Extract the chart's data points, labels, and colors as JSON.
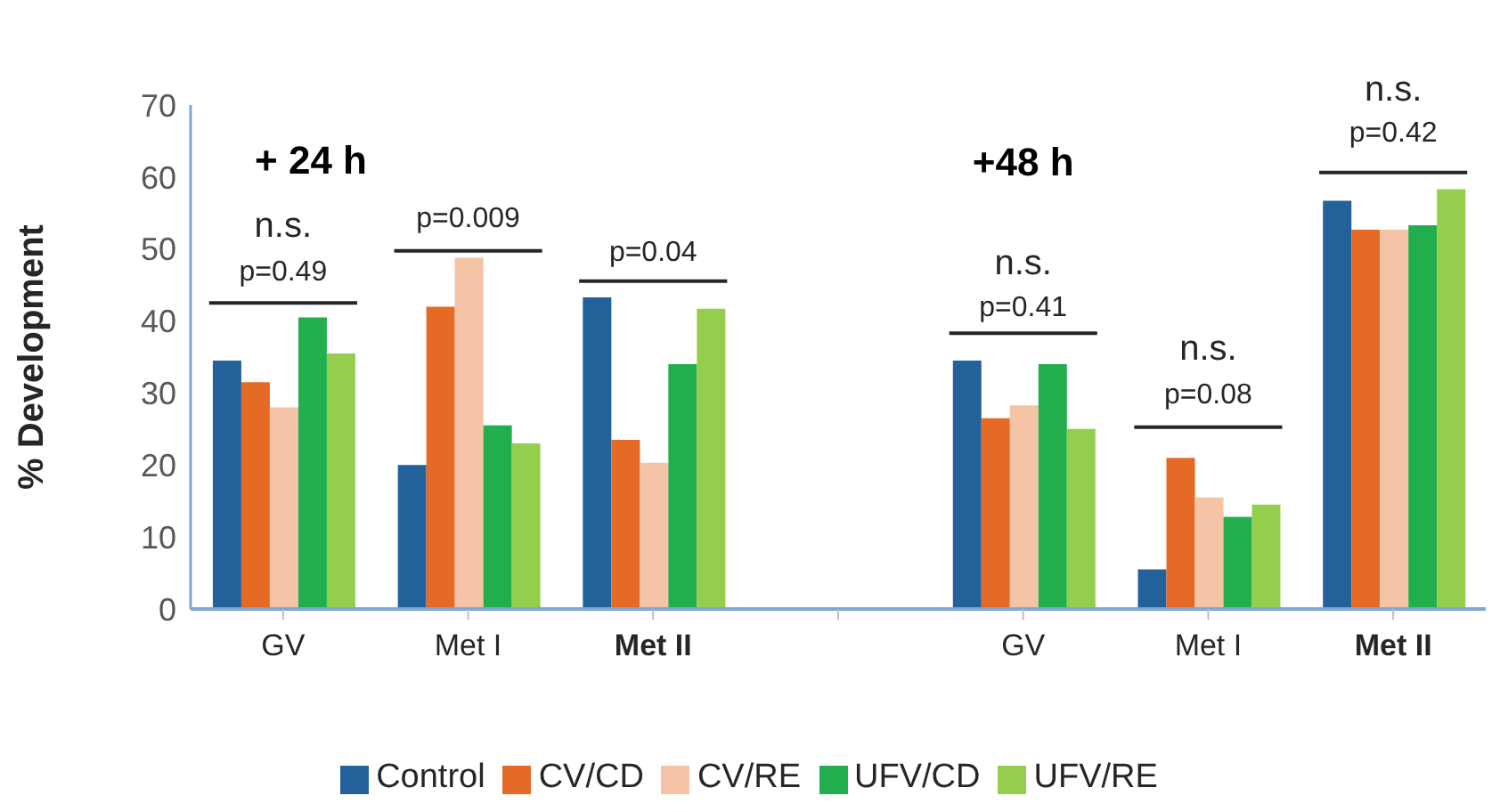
{
  "chart_data": {
    "type": "bar",
    "ylabel": "% Development",
    "categories": [
      "GV",
      "Met I",
      "Met II",
      null,
      "GV",
      "Met I",
      "Met II"
    ],
    "series": [
      {
        "name": "Control",
        "color": "#23619b",
        "values": [
          34.5,
          20,
          43.3,
          null,
          34.5,
          5.5,
          56.7
        ]
      },
      {
        "name": "CV/CD",
        "color": "#e46a25",
        "values": [
          31.5,
          42,
          23.5,
          null,
          26.5,
          21,
          52.7
        ]
      },
      {
        "name": "CV/RE",
        "color": "#f5c4a7",
        "values": [
          28,
          48.8,
          20.3,
          null,
          28.3,
          15.5,
          52.7
        ]
      },
      {
        "name": "UFV/CD",
        "color": "#22ae4d",
        "values": [
          40.5,
          25.5,
          34,
          null,
          34,
          12.8,
          53.3
        ]
      },
      {
        "name": "UFV/RE",
        "color": "#93cf4d",
        "values": [
          35.5,
          23,
          41.7,
          null,
          25,
          14.5,
          58.3
        ]
      }
    ],
    "ylim": [
      0,
      70
    ],
    "yticks": [
      0,
      10,
      20,
      30,
      40,
      50,
      60,
      70
    ],
    "grid": false,
    "legend": "bottom",
    "annotations": [
      "+ 24 h",
      "+48 h",
      "n.s.",
      "p=0.49",
      "p=0.009",
      "p=0.04",
      "n.s.",
      "p=0.41",
      "n.s.",
      "p=0.08",
      "n.s.",
      "p=0.42"
    ]
  }
}
